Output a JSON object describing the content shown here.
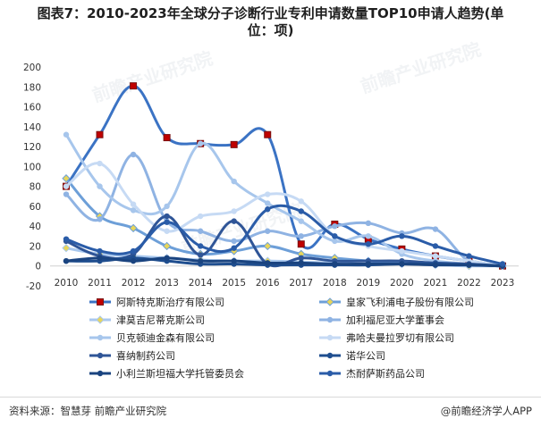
{
  "title_line1": "图表7：2010-2023年全球分子诊断行业专利申请数量TOP10申请人趋势(单",
  "title_line2": "位：项)",
  "source": "资料来源：智慧芽 前瞻产业研究院",
  "brand": "@前瞻经济学人APP",
  "watermark": "前瞻产业研究院",
  "chart_data": {
    "type": "line",
    "x": [
      "2010",
      "2011",
      "2012",
      "2013",
      "2014",
      "2015",
      "2016",
      "2017",
      "2018",
      "2019",
      "2020",
      "2021",
      "2022",
      "2023"
    ],
    "ylim": [
      -20,
      200
    ],
    "yticks": [
      -20,
      0,
      20,
      40,
      60,
      80,
      100,
      120,
      140,
      160,
      180,
      200
    ],
    "legend_position": "bottom",
    "series": [
      {
        "name": "阿斯特克斯治疗有限公司",
        "color": "#3b73c4",
        "marker": "square-red",
        "values": [
          80,
          132,
          181,
          129,
          123,
          122,
          132,
          22,
          42,
          27,
          17,
          10,
          5,
          0
        ]
      },
      {
        "name": "皇家飞利浦电子股份有限公司",
        "color": "#6d9fd8",
        "marker": "diamond",
        "values": [
          88,
          50,
          38,
          20,
          12,
          15,
          20,
          12,
          8,
          5,
          3,
          2,
          1,
          0
        ]
      },
      {
        "name": "津莫吉尼蒂克斯公司",
        "color": "#a9c8ee",
        "marker": "diamond",
        "values": [
          18,
          12,
          10,
          8,
          6,
          5,
          5,
          4,
          3,
          2,
          2,
          1,
          0,
          0
        ]
      },
      {
        "name": "加利福尼亚大学董事会",
        "color": "#8fb3e3",
        "marker": "circle",
        "values": [
          72,
          47,
          112,
          45,
          35,
          25,
          35,
          30,
          40,
          43,
          33,
          37,
          5,
          2
        ]
      },
      {
        "name": "贝克顿迪金森有限公司",
        "color": "#a7c6ec",
        "marker": "circle",
        "values": [
          132,
          80,
          56,
          60,
          123,
          85,
          63,
          45,
          25,
          30,
          12,
          5,
          2,
          0
        ]
      },
      {
        "name": "弗哈夫曼拉罗切有限公司",
        "color": "#c6daf4",
        "marker": "circle",
        "values": [
          80,
          103,
          62,
          35,
          50,
          55,
          72,
          65,
          30,
          20,
          15,
          10,
          5,
          0
        ]
      },
      {
        "name": "喜纳制药公司",
        "color": "#2f5597",
        "marker": "circle",
        "values": [
          25,
          10,
          12,
          50,
          11,
          45,
          2,
          8,
          5,
          5,
          5,
          3,
          2,
          0
        ]
      },
      {
        "name": "诺华公司",
        "color": "#1f4e8f",
        "marker": "circle",
        "values": [
          5,
          5,
          8,
          5,
          2,
          2,
          1,
          1,
          1,
          1,
          2,
          2,
          1,
          0
        ]
      },
      {
        "name": "小利兰斯坦福大学托管委员会",
        "color": "#1a4480",
        "marker": "circle",
        "values": [
          5,
          8,
          5,
          8,
          5,
          5,
          3,
          3,
          2,
          2,
          2,
          1,
          1,
          0
        ]
      },
      {
        "name": "杰耐萨斯药品公司",
        "color": "#2a5ca8",
        "marker": "circle",
        "values": [
          27,
          15,
          15,
          44,
          20,
          18,
          57,
          55,
          30,
          22,
          30,
          20,
          10,
          2
        ]
      }
    ]
  }
}
